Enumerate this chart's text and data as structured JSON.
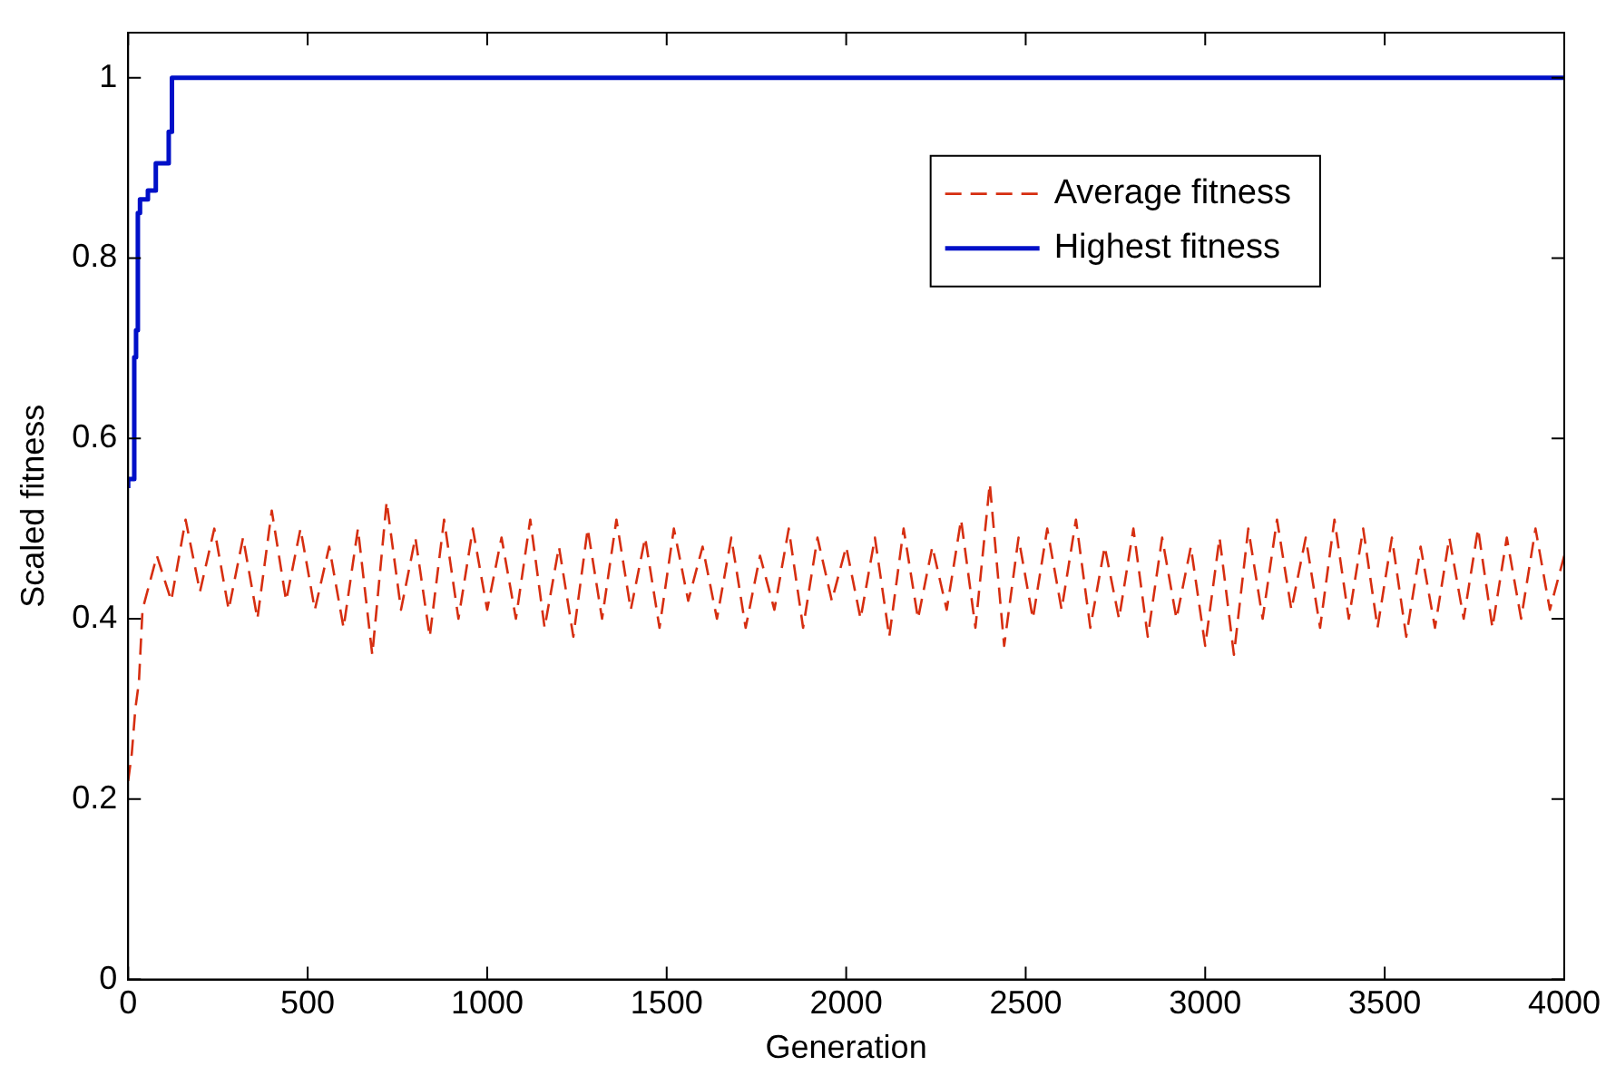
{
  "chart_data": {
    "type": "line",
    "xlabel": "Generation",
    "ylabel": "Scaled fitness",
    "xlim": [
      0,
      4000
    ],
    "ylim": [
      0,
      1.05
    ],
    "xticks": [
      0,
      500,
      1000,
      1500,
      2000,
      2500,
      3000,
      3500,
      4000
    ],
    "yticks": [
      0,
      0.2,
      0.4,
      0.6,
      0.8,
      1
    ],
    "grid": false,
    "legend": "top right",
    "series": [
      {
        "name": "Average fitness",
        "color": "#d62e10",
        "line_style": "dashed",
        "x": [
          0,
          10,
          20,
          30,
          40,
          60,
          80,
          120,
          160,
          200,
          240,
          280,
          320,
          360,
          400,
          440,
          480,
          520,
          560,
          600,
          640,
          680,
          720,
          760,
          800,
          840,
          880,
          920,
          960,
          1000,
          1040,
          1080,
          1120,
          1160,
          1200,
          1240,
          1280,
          1320,
          1360,
          1400,
          1440,
          1480,
          1520,
          1560,
          1600,
          1640,
          1680,
          1720,
          1760,
          1800,
          1840,
          1880,
          1920,
          1960,
          2000,
          2040,
          2080,
          2120,
          2160,
          2200,
          2240,
          2280,
          2320,
          2360,
          2400,
          2440,
          2480,
          2520,
          2560,
          2600,
          2640,
          2680,
          2720,
          2760,
          2800,
          2840,
          2880,
          2920,
          2960,
          3000,
          3040,
          3080,
          3120,
          3160,
          3200,
          3240,
          3280,
          3320,
          3360,
          3400,
          3440,
          3480,
          3520,
          3560,
          3600,
          3640,
          3680,
          3720,
          3760,
          3800,
          3840,
          3880,
          3920,
          3960,
          4000
        ],
        "values": [
          0.22,
          0.25,
          0.3,
          0.33,
          0.41,
          0.44,
          0.47,
          0.42,
          0.51,
          0.43,
          0.5,
          0.41,
          0.49,
          0.4,
          0.52,
          0.42,
          0.5,
          0.41,
          0.48,
          0.39,
          0.5,
          0.36,
          0.53,
          0.41,
          0.49,
          0.38,
          0.51,
          0.4,
          0.5,
          0.41,
          0.49,
          0.4,
          0.51,
          0.39,
          0.48,
          0.38,
          0.5,
          0.4,
          0.51,
          0.41,
          0.49,
          0.39,
          0.5,
          0.42,
          0.48,
          0.4,
          0.49,
          0.39,
          0.47,
          0.41,
          0.5,
          0.39,
          0.49,
          0.42,
          0.48,
          0.4,
          0.49,
          0.38,
          0.5,
          0.4,
          0.48,
          0.41,
          0.51,
          0.39,
          0.55,
          0.37,
          0.49,
          0.4,
          0.5,
          0.41,
          0.51,
          0.39,
          0.48,
          0.4,
          0.5,
          0.38,
          0.49,
          0.4,
          0.48,
          0.37,
          0.49,
          0.36,
          0.5,
          0.4,
          0.51,
          0.41,
          0.49,
          0.39,
          0.51,
          0.4,
          0.5,
          0.39,
          0.49,
          0.38,
          0.48,
          0.39,
          0.49,
          0.4,
          0.5,
          0.39,
          0.49,
          0.4,
          0.5,
          0.41,
          0.47
        ]
      },
      {
        "name": "Highest fitness",
        "type": "step",
        "color": "#0010c8",
        "line_style": "solid",
        "x": [
          0,
          17,
          22,
          27,
          33,
          55,
          77,
          113,
          122,
          138,
          4000
        ],
        "values": [
          0.545,
          0.555,
          0.69,
          0.72,
          0.85,
          0.865,
          0.875,
          0.905,
          0.94,
          1,
          1
        ]
      }
    ]
  }
}
